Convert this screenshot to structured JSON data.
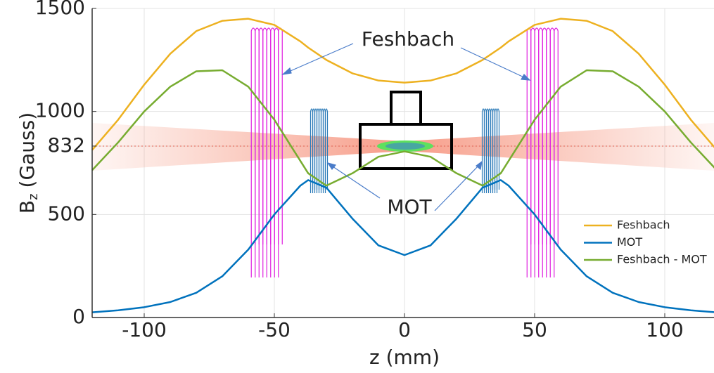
{
  "chart_data": {
    "type": "line",
    "xlabel": "z (mm)",
    "ylabel": [
      "B",
      "z",
      "(Gauss)"
    ],
    "x": [
      -120,
      -110,
      -100,
      -90,
      -80,
      -70,
      -60,
      -50,
      -40,
      -37,
      -30,
      -20,
      -10,
      0,
      10,
      20,
      30,
      37,
      40,
      50,
      60,
      70,
      80,
      90,
      100,
      110,
      120
    ],
    "series": [
      {
        "name": "Feshbach",
        "color": "#EDB120",
        "values": [
          813,
          960,
          1130,
          1280,
          1390,
          1440,
          1450,
          1420,
          1340,
          1310,
          1250,
          1185,
          1150,
          1140,
          1150,
          1185,
          1250,
          1310,
          1340,
          1420,
          1450,
          1440,
          1390,
          1280,
          1130,
          960,
          813
        ]
      },
      {
        "name": "MOT",
        "color": "#0072BD",
        "values": [
          25,
          35,
          50,
          75,
          120,
          200,
          330,
          500,
          640,
          667,
          630,
          480,
          350,
          303,
          350,
          480,
          630,
          667,
          640,
          500,
          330,
          200,
          120,
          75,
          50,
          35,
          25
        ]
      },
      {
        "name": "Feshbach - MOT",
        "color": "#77AC30",
        "values": [
          715,
          850,
          1000,
          1120,
          1195,
          1200,
          1120,
          960,
          760,
          700,
          640,
          700,
          780,
          806,
          780,
          700,
          640,
          700,
          760,
          960,
          1120,
          1200,
          1195,
          1120,
          1000,
          850,
          715
        ]
      }
    ],
    "xlim": [
      -120,
      120
    ],
    "xticks": [
      -100,
      -50,
      0,
      50,
      100
    ],
    "ylim": [
      0,
      1500
    ],
    "yticks": [
      0,
      500,
      832,
      1000,
      1500
    ],
    "grid": true,
    "legend": "lower right",
    "annotations": [
      "Feshbach",
      "MOT"
    ]
  }
}
